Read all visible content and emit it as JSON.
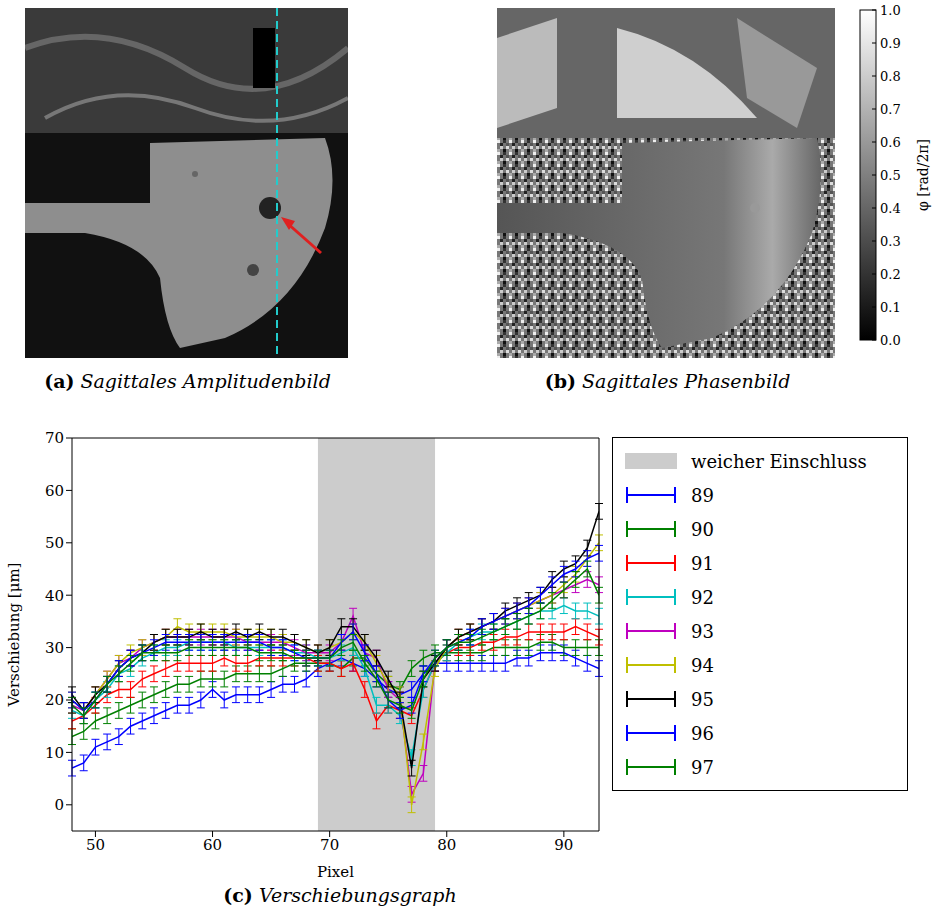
{
  "images": [
    {
      "caption_letter": "(a)",
      "caption": "Sagittales Amplitudenbild"
    },
    {
      "caption_letter": "(b)",
      "caption": "Sagittales Phasenbild",
      "colorbar": {
        "range": [
          0,
          1
        ],
        "ticks": [
          {
            "value": 0,
            "label": "0.0"
          },
          {
            "value": 0.1,
            "label": "0.1"
          },
          {
            "value": 0.2,
            "label": "0.2"
          },
          {
            "value": 0.3,
            "label": "0.3"
          },
          {
            "value": 0.4,
            "label": "0.4"
          },
          {
            "value": 0.5,
            "label": "0.5"
          },
          {
            "value": 0.6,
            "label": "0.6"
          },
          {
            "value": 0.7,
            "label": "0.7"
          },
          {
            "value": 0.8,
            "label": "0.8"
          },
          {
            "value": 0.9,
            "label": "0.9"
          },
          {
            "value": 1,
            "label": "1.0"
          }
        ],
        "label": "φ [rad/2π]"
      }
    }
  ],
  "chart_data": {
    "type": "line",
    "caption_letter": "(c)",
    "caption": "Verschiebungsgraph",
    "x_label": "Pixel",
    "y_label": "Verschiebung [μm]",
    "xlim": [
      48,
      93
    ],
    "xticks": [
      50,
      60,
      70,
      80,
      90
    ],
    "ylim": [
      -5,
      70
    ],
    "yticks": [
      0,
      10,
      20,
      30,
      40,
      50,
      60,
      70
    ],
    "grid": false,
    "legend": "right",
    "regions": [
      {
        "name": "weicher Einschluss",
        "x": [
          69,
          79
        ],
        "color": "#cccccc"
      }
    ],
    "x": [
      48,
      49,
      50,
      51,
      52,
      53,
      54,
      55,
      56,
      57,
      58,
      59,
      60,
      61,
      62,
      63,
      64,
      65,
      66,
      67,
      68,
      69,
      70,
      71,
      72,
      73,
      74,
      75,
      76,
      77,
      78,
      79,
      80,
      81,
      82,
      83,
      84,
      85,
      86,
      87,
      88,
      89,
      90,
      91,
      92,
      93
    ],
    "series": [
      {
        "name": "89",
        "color": "#0000ff",
        "values": [
          7,
          8,
          11,
          12,
          13,
          15,
          16,
          17,
          18,
          19,
          19,
          20,
          22,
          20,
          21,
          21,
          21,
          22,
          23,
          23,
          24,
          26,
          27,
          28,
          27,
          26,
          24,
          22,
          21,
          22,
          25,
          27,
          27,
          27,
          27,
          27,
          27,
          27,
          28,
          28,
          29,
          29,
          29,
          28,
          27,
          26
        ],
        "errors": [
          1.5,
          1.5,
          1.5,
          1.5,
          1.5,
          1.5,
          1.5,
          1.5,
          1.5,
          1.5,
          1.5,
          1.5,
          1.5,
          1.5,
          1.5,
          1.5,
          1.5,
          1.5,
          1.5,
          1.5,
          1.5,
          1.5,
          1.5,
          1.5,
          1.5,
          1.5,
          1.5,
          1.5,
          1.5,
          1.5,
          1.5,
          1.5,
          1.5,
          1.5,
          1.5,
          1.5,
          1.5,
          1.5,
          1.5,
          1.5,
          1.5,
          1.5,
          1.5,
          1.5,
          1.5,
          1.5
        ]
      },
      {
        "name": "90",
        "color": "#008000",
        "values": [
          13,
          14,
          16,
          17,
          18,
          19,
          20,
          21,
          22,
          23,
          23,
          24,
          24,
          24,
          25,
          25,
          25,
          25,
          26,
          27,
          27,
          27,
          27,
          26,
          28,
          28,
          25,
          23,
          22,
          26,
          28,
          29,
          29,
          29,
          29,
          29,
          30,
          30,
          30,
          30,
          31,
          31,
          30,
          30,
          30,
          30
        ],
        "errors": [
          1.5,
          1.5,
          1.5,
          1.5,
          1.5,
          1.5,
          1.5,
          1.5,
          1.5,
          1.5,
          1.5,
          1.5,
          1.5,
          1.5,
          1.5,
          1.5,
          1.5,
          1.5,
          1.5,
          1.5,
          1.5,
          1.5,
          1.5,
          1.5,
          1.5,
          1.5,
          1.5,
          1.5,
          1.5,
          1.5,
          1.5,
          1.5,
          1.5,
          1.5,
          1.5,
          1.5,
          1.5,
          1.5,
          1.5,
          1.5,
          1.5,
          1.5,
          1.5,
          1.5,
          1.5,
          1.5
        ]
      },
      {
        "name": "91",
        "color": "#ff0000",
        "values": [
          16,
          17,
          19,
          21,
          22,
          22,
          24,
          25,
          26,
          27,
          27,
          27,
          27,
          28,
          27,
          27,
          28,
          28,
          28,
          28,
          28,
          27,
          27,
          26,
          27,
          22,
          16,
          19,
          18,
          17,
          22,
          27,
          29,
          30,
          30,
          31,
          31,
          32,
          32,
          33,
          33,
          33,
          33,
          34,
          33,
          32
        ],
        "errors": [
          1.5,
          1.5,
          1.5,
          1.5,
          1.5,
          1.5,
          1.5,
          1.5,
          1.5,
          1.5,
          1.5,
          1.5,
          1.5,
          1.5,
          1.5,
          1.5,
          1.5,
          1.5,
          1.5,
          1.5,
          1.5,
          1.5,
          1.5,
          1.5,
          1.5,
          1.5,
          1.5,
          1.5,
          1.5,
          1.5,
          1.5,
          1.5,
          1.5,
          1.5,
          1.5,
          1.5,
          1.5,
          1.5,
          1.5,
          1.5,
          1.5,
          1.5,
          1.5,
          1.5,
          1.5,
          1.5
        ]
      },
      {
        "name": "92",
        "color": "#00bfbf",
        "values": [
          18,
          17,
          20,
          22,
          25,
          26,
          28,
          29,
          30,
          30,
          31,
          31,
          31,
          31,
          30,
          30,
          30,
          30,
          30,
          29,
          29,
          28,
          28,
          29,
          30,
          26,
          19,
          19,
          17,
          9,
          22,
          27,
          29,
          31,
          32,
          33,
          33,
          34,
          35,
          36,
          37,
          37,
          38,
          37,
          37,
          36
        ],
        "errors": [
          1.5,
          1.5,
          1.5,
          1.5,
          1.5,
          1.5,
          1.5,
          1.5,
          1.5,
          1.5,
          1.5,
          1.5,
          1.5,
          1.5,
          1.5,
          1.5,
          1.5,
          1.5,
          1.5,
          1.5,
          1.5,
          1.5,
          1.5,
          1.5,
          1.5,
          1.5,
          1.5,
          1.5,
          1.5,
          1.5,
          1.5,
          1.5,
          1.5,
          1.5,
          1.5,
          1.5,
          1.5,
          1.5,
          1.5,
          1.5,
          1.5,
          1.5,
          1.5,
          1.5,
          1.5,
          1.5
        ]
      },
      {
        "name": "93",
        "color": "#bf00bf",
        "values": [
          19,
          18,
          21,
          24,
          27,
          28,
          30,
          31,
          32,
          32,
          32,
          32,
          32,
          32,
          32,
          31,
          31,
          31,
          31,
          30,
          29,
          29,
          29,
          31,
          36,
          29,
          28,
          22,
          20,
          2,
          6,
          27,
          30,
          32,
          33,
          34,
          35,
          36,
          37,
          38,
          39,
          40,
          41,
          42,
          43,
          42
        ],
        "errors": [
          1.5,
          1.5,
          1.5,
          1.5,
          1.5,
          1.5,
          1.5,
          1.5,
          1.5,
          1.5,
          1.5,
          1.5,
          1.5,
          1.5,
          1.5,
          1.5,
          1.5,
          1.5,
          1.5,
          1.5,
          1.5,
          1.5,
          1.5,
          1.5,
          1.5,
          1.5,
          1.5,
          1.5,
          1.5,
          1.5,
          1.5,
          1.5,
          1.5,
          1.5,
          1.5,
          1.5,
          1.5,
          1.5,
          1.5,
          1.5,
          1.5,
          1.5,
          1.5,
          1.5,
          1.5,
          1.5
        ]
      },
      {
        "name": "94",
        "color": "#bfbf00",
        "values": [
          20,
          18,
          21,
          24,
          27,
          29,
          30,
          31,
          32,
          34,
          33,
          33,
          33,
          33,
          32,
          32,
          32,
          32,
          31,
          31,
          30,
          29,
          30,
          31,
          33,
          31,
          27,
          23,
          21,
          0,
          12,
          26,
          30,
          32,
          33,
          34,
          35,
          36,
          37,
          38,
          39,
          40,
          42,
          44,
          47,
          50
        ],
        "errors": [
          1.5,
          1.5,
          1.5,
          1.5,
          1.5,
          1.5,
          1.5,
          1.5,
          1.5,
          1.5,
          1.5,
          1.5,
          1.5,
          1.5,
          1.5,
          1.5,
          1.5,
          1.5,
          1.5,
          1.5,
          1.5,
          1.5,
          1.5,
          1.5,
          1.5,
          1.5,
          1.5,
          1.5,
          1.5,
          1.5,
          1.5,
          1.5,
          1.5,
          1.5,
          1.5,
          1.5,
          1.5,
          1.5,
          1.5,
          1.5,
          1.5,
          1.5,
          1.5,
          1.5,
          1.5,
          1.5
        ]
      },
      {
        "name": "95",
        "color": "#000000",
        "values": [
          21,
          18,
          21,
          23,
          26,
          28,
          29,
          31,
          32,
          32,
          32,
          33,
          32,
          32,
          33,
          32,
          33,
          32,
          32,
          31,
          30,
          29,
          30,
          34,
          34,
          31,
          28,
          24,
          20,
          7,
          24,
          27,
          30,
          32,
          33,
          34,
          35,
          37,
          38,
          39,
          40,
          43,
          45,
          46,
          49,
          56
        ],
        "errors": [
          1.5,
          1.5,
          1.5,
          1.5,
          1.5,
          1.5,
          1.5,
          1.5,
          1.5,
          1.5,
          1.5,
          1.5,
          1.5,
          1.5,
          1.5,
          1.5,
          1.5,
          1.5,
          1.5,
          1.5,
          1.5,
          1.5,
          1.5,
          1.5,
          1.5,
          1.5,
          1.5,
          1.5,
          1.5,
          1.5,
          1.5,
          1.5,
          1.5,
          1.5,
          1.5,
          1.5,
          1.5,
          1.5,
          1.5,
          1.5,
          1.5,
          1.5,
          1.5,
          1.5,
          1.5,
          1.5
        ]
      },
      {
        "name": "96",
        "color": "#0000ff",
        "values": [
          20,
          18,
          20,
          23,
          26,
          28,
          29,
          30,
          31,
          31,
          31,
          31,
          31,
          31,
          31,
          31,
          31,
          30,
          30,
          29,
          28,
          28,
          28,
          31,
          33,
          29,
          25,
          20,
          18,
          19,
          25,
          28,
          30,
          31,
          32,
          34,
          35,
          36,
          37,
          38,
          40,
          42,
          44,
          45,
          47,
          48
        ],
        "errors": [
          1.5,
          1.5,
          1.5,
          1.5,
          1.5,
          1.5,
          1.5,
          1.5,
          1.5,
          1.5,
          1.5,
          1.5,
          1.5,
          1.5,
          1.5,
          1.5,
          1.5,
          1.5,
          1.5,
          1.5,
          1.5,
          1.5,
          1.5,
          1.5,
          1.5,
          1.5,
          1.5,
          1.5,
          1.5,
          1.5,
          1.5,
          1.5,
          1.5,
          1.5,
          1.5,
          1.5,
          1.5,
          1.5,
          1.5,
          1.5,
          1.5,
          1.5,
          1.5,
          1.5,
          1.5,
          1.5
        ]
      },
      {
        "name": "97",
        "color": "#008000",
        "values": [
          19,
          17,
          20,
          23,
          25,
          27,
          29,
          29,
          29,
          29,
          30,
          30,
          30,
          30,
          30,
          30,
          29,
          29,
          29,
          28,
          28,
          28,
          28,
          30,
          31,
          27,
          24,
          20,
          19,
          18,
          24,
          28,
          30,
          31,
          31,
          32,
          33,
          34,
          35,
          36,
          37,
          39,
          41,
          43,
          45,
          40
        ],
        "errors": [
          1.5,
          1.5,
          1.5,
          1.5,
          1.5,
          1.5,
          1.5,
          1.5,
          1.5,
          1.5,
          1.5,
          1.5,
          1.5,
          1.5,
          1.5,
          1.5,
          1.5,
          1.5,
          1.5,
          1.5,
          1.5,
          1.5,
          1.5,
          1.5,
          1.5,
          1.5,
          1.5,
          1.5,
          1.5,
          1.5,
          1.5,
          1.5,
          1.5,
          1.5,
          1.5,
          1.5,
          1.5,
          1.5,
          1.5,
          1.5,
          1.5,
          1.5,
          1.5,
          1.5,
          1.5,
          1.5
        ]
      }
    ]
  }
}
